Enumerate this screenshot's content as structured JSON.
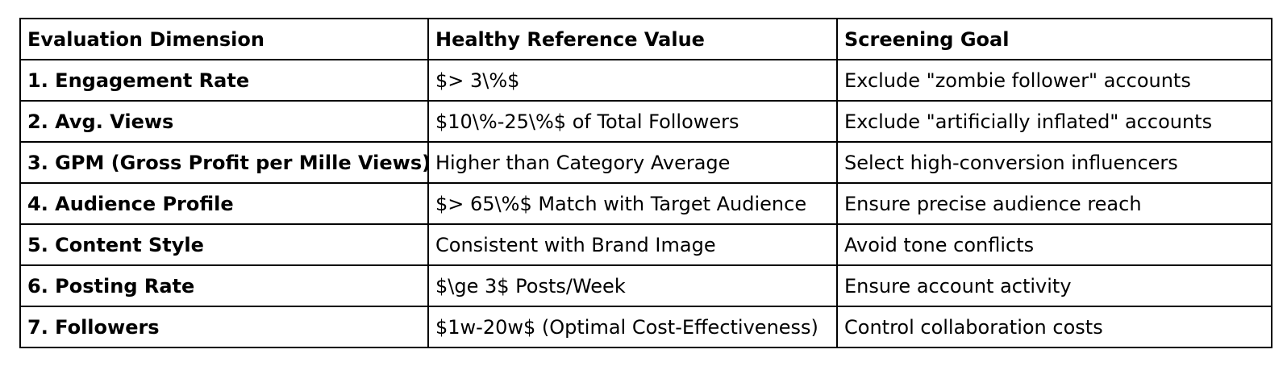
{
  "table": {
    "headers": [
      "Evaluation Dimension",
      "Healthy Reference Value",
      "Screening Goal"
    ],
    "rows": [
      {
        "dimension": "1. Engagement Rate",
        "reference": "$> 3\\%$",
        "goal": "Exclude \"zombie follower\" accounts"
      },
      {
        "dimension": "2. Avg. Views",
        "reference": "$10\\%-25\\%$ of Total Followers",
        "goal": "Exclude \"artificially inflated\" accounts"
      },
      {
        "dimension": "3. GPM (Gross Profit per Mille Views)",
        "reference": "Higher than Category Average",
        "goal": "Select high-conversion influencers"
      },
      {
        "dimension": "4. Audience Profile",
        "reference": "$> 65\\%$ Match with Target Audience",
        "goal": "Ensure precise audience reach"
      },
      {
        "dimension": "5. Content Style",
        "reference": "Consistent with Brand Image",
        "goal": "Avoid tone conflicts"
      },
      {
        "dimension": "6. Posting Rate",
        "reference": "$\\ge 3$ Posts/Week",
        "goal": "Ensure account activity"
      },
      {
        "dimension": "7. Followers",
        "reference": "$1w-20w$ (Optimal Cost-Effectiveness)",
        "goal": "Control collaboration costs"
      }
    ]
  }
}
